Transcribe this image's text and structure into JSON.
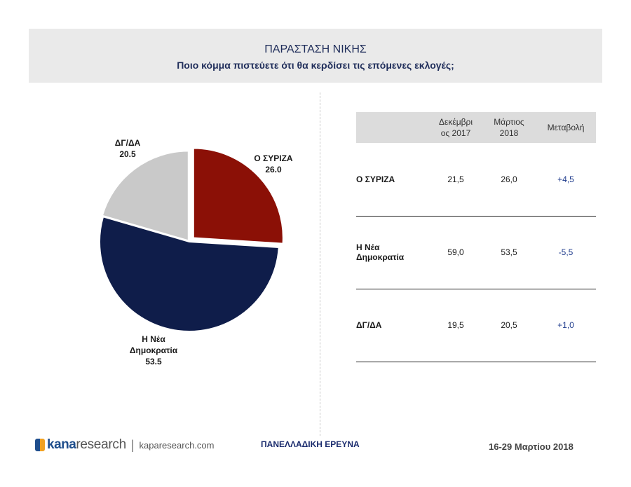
{
  "header": {
    "title": "ΠΑΡΑΣΤΑΣΗ ΝΙΚΗΣ",
    "subtitle": "Ποιο κόμμα πιστεύετε ότι θα κερδίσει τις επόμενες εκλογές;"
  },
  "chart_data": {
    "type": "pie",
    "title": "",
    "slices": [
      {
        "label": "Ο ΣΥΡΙΖΑ",
        "value": 26.0,
        "value_text": "26.0",
        "color": "#8b1006"
      },
      {
        "label": "Η Νέα Δημοκρατία",
        "label_lines": [
          "Η Νέα",
          "Δημοκρατία"
        ],
        "value": 53.5,
        "value_text": "53.5",
        "color": "#0f1d4a"
      },
      {
        "label": "ΔΓ/ΔΑ",
        "value": 20.5,
        "value_text": "20.5",
        "color": "#c9c9c9"
      }
    ]
  },
  "table": {
    "headers": [
      "",
      "Δεκέμβρι\nος 2017",
      "Μάρτιος\n2018",
      "Μεταβολή"
    ],
    "rows": [
      {
        "party": "Ο ΣΥΡΙΖΑ",
        "dec2017": "21,5",
        "mar2018": "26,0",
        "change": "+4,5"
      },
      {
        "party": "Η Νέα Δημοκρατία",
        "dec2017": "59,0",
        "mar2018": "53,5",
        "change": "-5,5"
      },
      {
        "party": "ΔΓ/ΔΑ",
        "dec2017": "19,5",
        "mar2018": "20,5",
        "change": "+1,0"
      }
    ]
  },
  "footer": {
    "logo_kana": "kana",
    "logo_research": "research",
    "separator": "|",
    "url": "kaparesearch.com",
    "survey": "ΠΑΝΕΛΛΑΔΙΚΗ ΕΡΕΥΝΑ",
    "dates": "16-29 Μαρτίου 2018"
  }
}
